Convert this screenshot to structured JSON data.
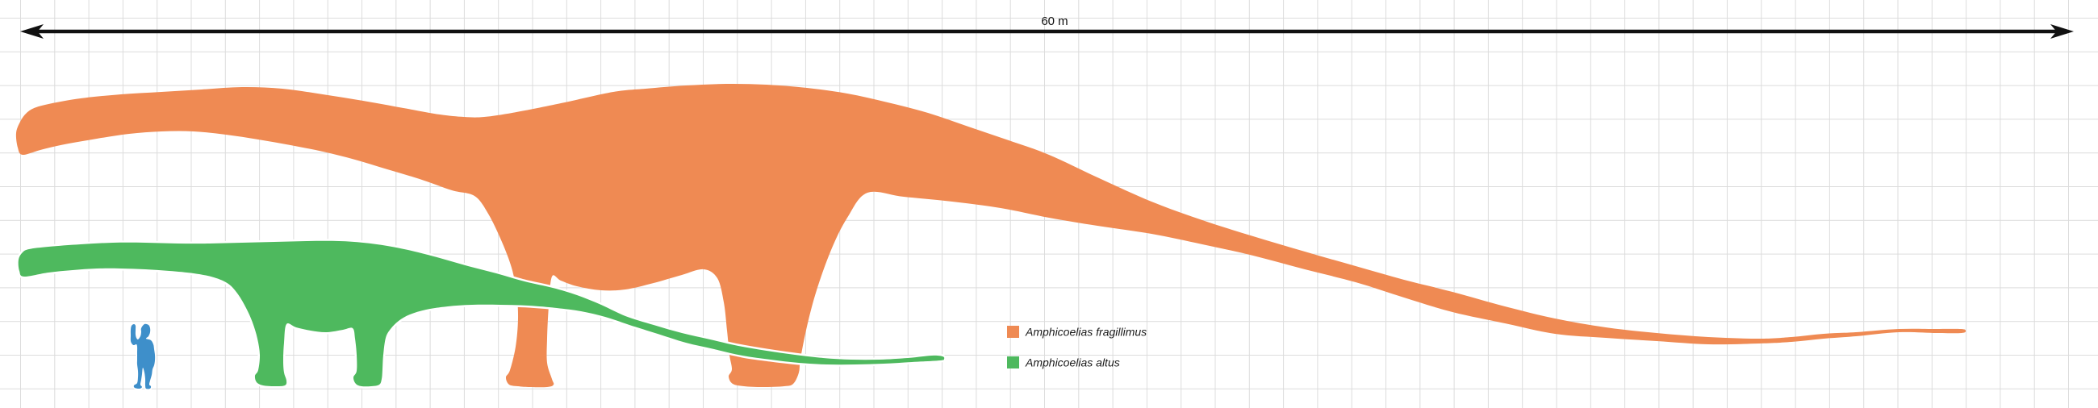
{
  "scale_bar": {
    "label": "60 m",
    "meters": 60
  },
  "grid": {
    "cell_meters": 1,
    "line_color": "#dcdcdc",
    "background": "#ffffff"
  },
  "species": [
    {
      "name": "Amphicoelias fragillimus",
      "color": "#EF8A53",
      "approx_length_m": 57
    },
    {
      "name": "Amphicoelias altus",
      "color": "#4EB95E",
      "approx_length_m": 27
    }
  ],
  "human": {
    "color": "#3E8FCA",
    "approx_height_m": 1.8
  },
  "arrow_color": "#111111"
}
